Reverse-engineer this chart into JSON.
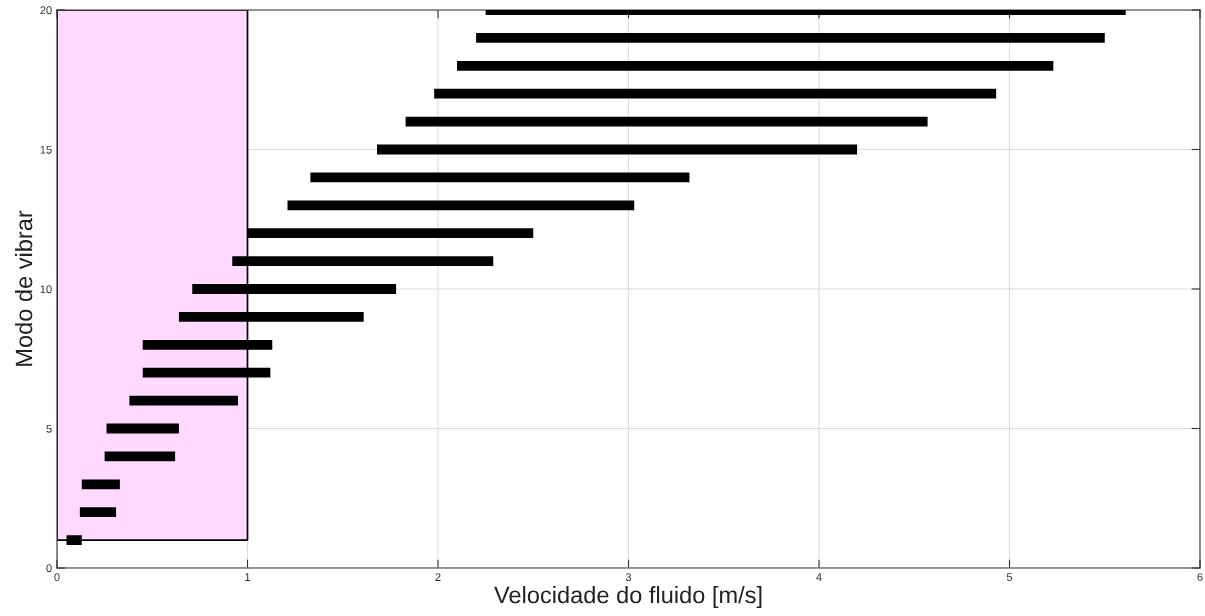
{
  "chart_data": {
    "type": "bar",
    "orientation": "horizontal",
    "xlabel": "Velocidade do fluido [m/s]",
    "ylabel": "Modo de vibrar",
    "x": [
      1,
      2,
      3,
      4,
      5,
      6,
      7,
      8,
      9,
      10,
      11,
      12,
      13,
      14,
      15,
      16,
      17,
      18,
      19,
      20
    ],
    "base": [
      0.05,
      0.12,
      0.13,
      0.25,
      0.26,
      0.38,
      0.45,
      0.45,
      0.64,
      0.71,
      0.92,
      1.0,
      1.21,
      1.33,
      1.68,
      1.83,
      1.98,
      2.1,
      2.2,
      2.25
    ],
    "values": [
      0.08,
      0.19,
      0.2,
      0.37,
      0.38,
      0.57,
      0.67,
      0.68,
      0.97,
      1.07,
      1.37,
      1.5,
      1.82,
      1.99,
      2.52,
      2.74,
      2.95,
      3.13,
      3.3,
      3.36
    ],
    "color": "#000000",
    "bands": [
      {
        "axis": "x",
        "from": 0,
        "to": 1,
        "color": "#ffd9ff"
      }
    ],
    "xlim": [
      0,
      6
    ],
    "xticks": [
      0,
      1,
      2,
      3,
      4,
      5,
      6
    ],
    "ylim": [
      0,
      20
    ],
    "yticks": [
      0,
      5,
      10,
      15,
      20
    ],
    "grid": true
  }
}
